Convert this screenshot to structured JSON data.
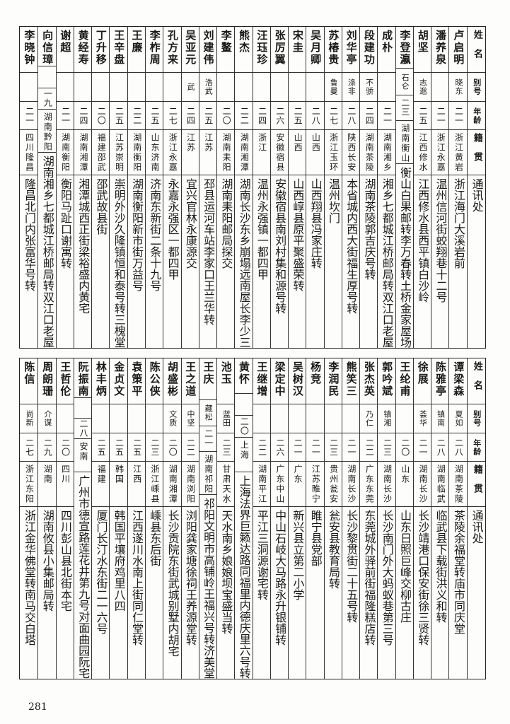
{
  "headers": {
    "name": "姓名",
    "alias": "别号",
    "age": "年龄",
    "origin": "籍贯",
    "address": "通讯处"
  },
  "tables": [
    {
      "rows": [
        {
          "name": "卢启明",
          "alias": "晓东",
          "age": "二一",
          "origin": "浙江黄岩",
          "address": "浙江海门大溪岩前"
        },
        {
          "name": "潘养泉",
          "alias": "",
          "age": "二一",
          "origin": "浙江永嘉",
          "address": "温州信河街蛟翔巷十二号"
        },
        {
          "name": "胡坚",
          "alias": "志逖",
          "age": "二五",
          "origin": "江西修水",
          "address": "江西修水县西平镇白沙岭"
        },
        {
          "name": "李登瀛",
          "alias": "石仑",
          "age": "二三",
          "origin": "湖南衡山",
          "address": "衡山白果邮转李万春转土桥金家屋场"
        },
        {
          "name": "成朴",
          "alias": "",
          "age": "二一",
          "origin": "湖南湘乡",
          "address": "湘乡七都城江桥邮局转双江口老屋"
        },
        {
          "name": "段建功",
          "alias": "不骄",
          "age": "二四",
          "origin": "湖南茶陵",
          "address": "湖南茶陵郭吉庆号转"
        },
        {
          "name": "刘华亭",
          "alias": "涤非",
          "age": "二八",
          "origin": "陕西长安",
          "address": "本省城内西大街福生厚号转"
        },
        {
          "name": "苏椿贵",
          "alias": "鲁曼",
          "age": "二七",
          "origin": "浙江玉环",
          "address": "温州坎门"
        },
        {
          "name": "吴月卿",
          "alias": "",
          "age": "二八",
          "origin": "山西",
          "address": "山西翔县冯家庄转"
        },
        {
          "name": "宋圭",
          "alias": "",
          "age": "二五",
          "origin": "山西",
          "address": "山西崞县原平聚盛荣转"
        },
        {
          "name": "张厉翼",
          "alias": "",
          "age": "二六",
          "origin": "安徽宿县",
          "address": "安徽宿县南刘村集和源号转"
        },
        {
          "name": "汪珏珍",
          "alias": "",
          "age": "二四",
          "origin": "浙江",
          "address": "温州永强镇一都四甲"
        },
        {
          "name": "熊杰",
          "alias": "",
          "age": "二二",
          "origin": "湖南湘潭",
          "address": "湖南长沙东乡崩塌远南屋长李少三"
        },
        {
          "name": "李鳌",
          "alias": "",
          "age": "二〇",
          "origin": "湖南耒阳",
          "address": "湖南耒阳邮局探交"
        },
        {
          "name": "刘建伟",
          "alias": "浩武",
          "age": "二五",
          "origin": "江苏",
          "address": "邳县运河车站李家口王兰华转"
        },
        {
          "name": "吴亚元",
          "alias": "武",
          "age": "二四",
          "origin": "江苏",
          "address": "宜兴官林永康源交"
        },
        {
          "name": "孔方来",
          "alias": "",
          "age": "二七",
          "origin": "浙江永嘉",
          "address": "永嘉永强区一都四甲"
        },
        {
          "name": "李柞周",
          "alias": "",
          "age": "二五",
          "origin": "山东济南",
          "address": "济南东新街二条十九号"
        },
        {
          "name": "王廉",
          "alias": "",
          "age": "二二",
          "origin": "湖南衡阳",
          "address": "湖南衡阳新市街万益号"
        },
        {
          "name": "王辛盘",
          "alias": "",
          "age": "二五",
          "origin": "江苏崇明",
          "address": "崇明外沙久隆镇恒和泰号转三槐堂"
        },
        {
          "name": "丁升移",
          "alias": "",
          "age": "二〇",
          "origin": "福建邵武",
          "address": "邵武故县街"
        },
        {
          "name": "黄经寿",
          "alias": "",
          "age": "二四",
          "origin": "湖南湘潭",
          "address": "湘潭城西正街梁裕盛内黄宅"
        },
        {
          "name": "谢超",
          "alias": "",
          "age": "二一",
          "origin": "湖南衡阳",
          "address": "衡阳马趾口谢寓转"
        },
        {
          "name": "向信璋",
          "alias": "",
          "age": "一九",
          "origin": "湖南黔阳",
          "address": "湖南湘乡七都城江桥邮局转双江口老屋"
        },
        {
          "name": "李晓钟",
          "alias": "",
          "age": "二一",
          "origin": "四川隆昌",
          "address": "隆昌北门内张富华号转"
        }
      ]
    },
    {
      "rows": [
        {
          "name": "谭梁森",
          "alias": "夏如",
          "age": "二八",
          "origin": "湖南茶陵",
          "address": "茶陵余福堂转庙市同庆堂"
        },
        {
          "name": "陈雅亭",
          "alias": "镇南",
          "age": "二八",
          "origin": "湖南临武",
          "address": "临武县下载街洪义和转"
        },
        {
          "name": "徐展",
          "alias": "荟华",
          "age": "二一",
          "origin": "湖南长沙",
          "address": "长沙靖港口保安街徐三贤转"
        },
        {
          "name": "王纶甫",
          "alias": "",
          "age": "二〇",
          "origin": "山东",
          "address": "山东日照巨峰交柳古庄"
        },
        {
          "name": "郭吟斌",
          "alias": "镇湘",
          "age": "二三",
          "origin": "湖南长沙",
          "address": "长沙南门外大蚂蚁巷第三号"
        },
        {
          "name": "张杰英",
          "alias": "乃仁",
          "age": "二二",
          "origin": "广东东莞",
          "address": "东莞城外驿前街福隆糕店转"
        },
        {
          "name": "熊笑三",
          "alias": "",
          "age": "二一",
          "origin": "湖南长沙",
          "address": "长沙黎贯街二十五号转"
        },
        {
          "name": "李润民",
          "alias": "",
          "age": "二三",
          "origin": "贵州瓮安",
          "address": "瓮安县教育局转"
        },
        {
          "name": "杨竞",
          "alias": "",
          "age": "二一",
          "origin": "江苏睢宁",
          "address": "睢宁县党部"
        },
        {
          "name": "吴树汉",
          "alias": "",
          "age": "二一",
          "origin": "广东",
          "address": "新兴县立第二小学"
        },
        {
          "name": "梁定中",
          "alias": "",
          "age": "二六",
          "origin": "广东中山",
          "address": "中山石岐大马路永升银铺转"
        },
        {
          "name": "王继增",
          "alias": "",
          "age": "二二",
          "origin": "湖南平江",
          "address": "平江三洞源谢宅转"
        },
        {
          "name": "黄怀",
          "alias": "",
          "age": "二〇",
          "origin": "上海",
          "address": "上海法界巨籁达路同福里内德庆里六号转"
        },
        {
          "name": "池玉",
          "alias": "蓝田",
          "age": "二三",
          "origin": "甘肃天水",
          "address": "天水南乡娘娘坝宝盛当转"
        },
        {
          "name": "王庆",
          "alias": "藏松",
          "age": "二一",
          "origin": "湖南祁阳",
          "address": "祁阳文明市高铺岭王福兴号转济美堂"
        },
        {
          "name": "王之道",
          "alias": "中坚",
          "age": "二二",
          "origin": "湖南浏阳",
          "address": "浏阳龚家塘徐祠王养源堂转"
        },
        {
          "name": "胡盛彬",
          "alias": "文质",
          "age": "二〇",
          "origin": "湖南湘潭",
          "address": "长沙贡院东街武城别墅内胡宅"
        },
        {
          "name": "陈公侠",
          "alias": "",
          "age": "二三",
          "origin": "浙江嵊县",
          "address": "嵊县东后街"
        },
        {
          "name": "袁策平",
          "alias": "",
          "age": "二五",
          "origin": "江西",
          "address": "江西遂川水南上街同仁堂转"
        },
        {
          "name": "金贞文",
          "alias": "",
          "age": "二五",
          "origin": "韩国",
          "address": "韩国平壤府鸡里八四"
        },
        {
          "name": "林丰炳",
          "alias": "",
          "age": "二五",
          "origin": "福建",
          "address": "厦门长汀水东街二一六号"
        },
        {
          "name": "阮振南",
          "alias": "",
          "age": "二八",
          "origin": "安南",
          "address": "广州市德宣路莲花井第九号对面曲园阮宅"
        },
        {
          "name": "王哲伦",
          "alias": "",
          "age": "二〇",
          "origin": "四川",
          "address": "四川彭山县北街本宅"
        },
        {
          "name": "周朗珊",
          "alias": "介谋",
          "age": "二九",
          "origin": "湖南",
          "address": "湖南攸县小集邮局转"
        },
        {
          "name": "陈信",
          "alias": "尚新",
          "age": "二七",
          "origin": "浙江东阳",
          "address": "浙江金华佛堂转南马交白塔"
        }
      ]
    }
  ],
  "page_number": "281"
}
